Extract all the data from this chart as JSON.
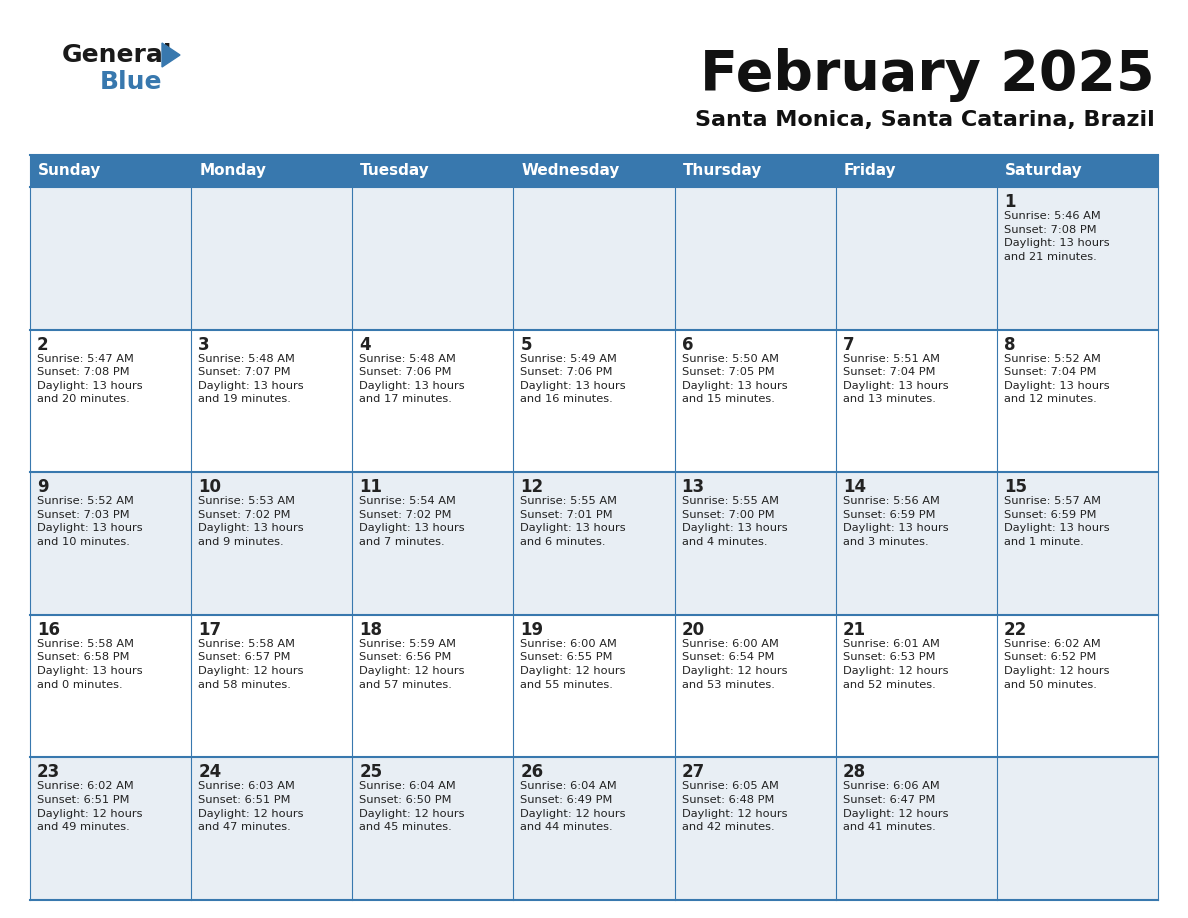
{
  "title": "February 2025",
  "subtitle": "Santa Monica, Santa Catarina, Brazil",
  "header_color": "#3878ae",
  "header_text_color": "#ffffff",
  "cell_bg_light": "#e8eef4",
  "cell_bg_white": "#ffffff",
  "text_color": "#222222",
  "border_color": "#3878ae",
  "days_of_week": [
    "Sunday",
    "Monday",
    "Tuesday",
    "Wednesday",
    "Thursday",
    "Friday",
    "Saturday"
  ],
  "weeks": [
    [
      {
        "day": null,
        "info": null
      },
      {
        "day": null,
        "info": null
      },
      {
        "day": null,
        "info": null
      },
      {
        "day": null,
        "info": null
      },
      {
        "day": null,
        "info": null
      },
      {
        "day": null,
        "info": null
      },
      {
        "day": 1,
        "info": "Sunrise: 5:46 AM\nSunset: 7:08 PM\nDaylight: 13 hours\nand 21 minutes."
      }
    ],
    [
      {
        "day": 2,
        "info": "Sunrise: 5:47 AM\nSunset: 7:08 PM\nDaylight: 13 hours\nand 20 minutes."
      },
      {
        "day": 3,
        "info": "Sunrise: 5:48 AM\nSunset: 7:07 PM\nDaylight: 13 hours\nand 19 minutes."
      },
      {
        "day": 4,
        "info": "Sunrise: 5:48 AM\nSunset: 7:06 PM\nDaylight: 13 hours\nand 17 minutes."
      },
      {
        "day": 5,
        "info": "Sunrise: 5:49 AM\nSunset: 7:06 PM\nDaylight: 13 hours\nand 16 minutes."
      },
      {
        "day": 6,
        "info": "Sunrise: 5:50 AM\nSunset: 7:05 PM\nDaylight: 13 hours\nand 15 minutes."
      },
      {
        "day": 7,
        "info": "Sunrise: 5:51 AM\nSunset: 7:04 PM\nDaylight: 13 hours\nand 13 minutes."
      },
      {
        "day": 8,
        "info": "Sunrise: 5:52 AM\nSunset: 7:04 PM\nDaylight: 13 hours\nand 12 minutes."
      }
    ],
    [
      {
        "day": 9,
        "info": "Sunrise: 5:52 AM\nSunset: 7:03 PM\nDaylight: 13 hours\nand 10 minutes."
      },
      {
        "day": 10,
        "info": "Sunrise: 5:53 AM\nSunset: 7:02 PM\nDaylight: 13 hours\nand 9 minutes."
      },
      {
        "day": 11,
        "info": "Sunrise: 5:54 AM\nSunset: 7:02 PM\nDaylight: 13 hours\nand 7 minutes."
      },
      {
        "day": 12,
        "info": "Sunrise: 5:55 AM\nSunset: 7:01 PM\nDaylight: 13 hours\nand 6 minutes."
      },
      {
        "day": 13,
        "info": "Sunrise: 5:55 AM\nSunset: 7:00 PM\nDaylight: 13 hours\nand 4 minutes."
      },
      {
        "day": 14,
        "info": "Sunrise: 5:56 AM\nSunset: 6:59 PM\nDaylight: 13 hours\nand 3 minutes."
      },
      {
        "day": 15,
        "info": "Sunrise: 5:57 AM\nSunset: 6:59 PM\nDaylight: 13 hours\nand 1 minute."
      }
    ],
    [
      {
        "day": 16,
        "info": "Sunrise: 5:58 AM\nSunset: 6:58 PM\nDaylight: 13 hours\nand 0 minutes."
      },
      {
        "day": 17,
        "info": "Sunrise: 5:58 AM\nSunset: 6:57 PM\nDaylight: 12 hours\nand 58 minutes."
      },
      {
        "day": 18,
        "info": "Sunrise: 5:59 AM\nSunset: 6:56 PM\nDaylight: 12 hours\nand 57 minutes."
      },
      {
        "day": 19,
        "info": "Sunrise: 6:00 AM\nSunset: 6:55 PM\nDaylight: 12 hours\nand 55 minutes."
      },
      {
        "day": 20,
        "info": "Sunrise: 6:00 AM\nSunset: 6:54 PM\nDaylight: 12 hours\nand 53 minutes."
      },
      {
        "day": 21,
        "info": "Sunrise: 6:01 AM\nSunset: 6:53 PM\nDaylight: 12 hours\nand 52 minutes."
      },
      {
        "day": 22,
        "info": "Sunrise: 6:02 AM\nSunset: 6:52 PM\nDaylight: 12 hours\nand 50 minutes."
      }
    ],
    [
      {
        "day": 23,
        "info": "Sunrise: 6:02 AM\nSunset: 6:51 PM\nDaylight: 12 hours\nand 49 minutes."
      },
      {
        "day": 24,
        "info": "Sunrise: 6:03 AM\nSunset: 6:51 PM\nDaylight: 12 hours\nand 47 minutes."
      },
      {
        "day": 25,
        "info": "Sunrise: 6:04 AM\nSunset: 6:50 PM\nDaylight: 12 hours\nand 45 minutes."
      },
      {
        "day": 26,
        "info": "Sunrise: 6:04 AM\nSunset: 6:49 PM\nDaylight: 12 hours\nand 44 minutes."
      },
      {
        "day": 27,
        "info": "Sunrise: 6:05 AM\nSunset: 6:48 PM\nDaylight: 12 hours\nand 42 minutes."
      },
      {
        "day": 28,
        "info": "Sunrise: 6:06 AM\nSunset: 6:47 PM\nDaylight: 12 hours\nand 41 minutes."
      },
      {
        "day": null,
        "info": null
      }
    ]
  ],
  "logo_general_color": "#1a1a1a",
  "logo_blue_color": "#3878ae",
  "logo_triangle_color": "#3878ae"
}
